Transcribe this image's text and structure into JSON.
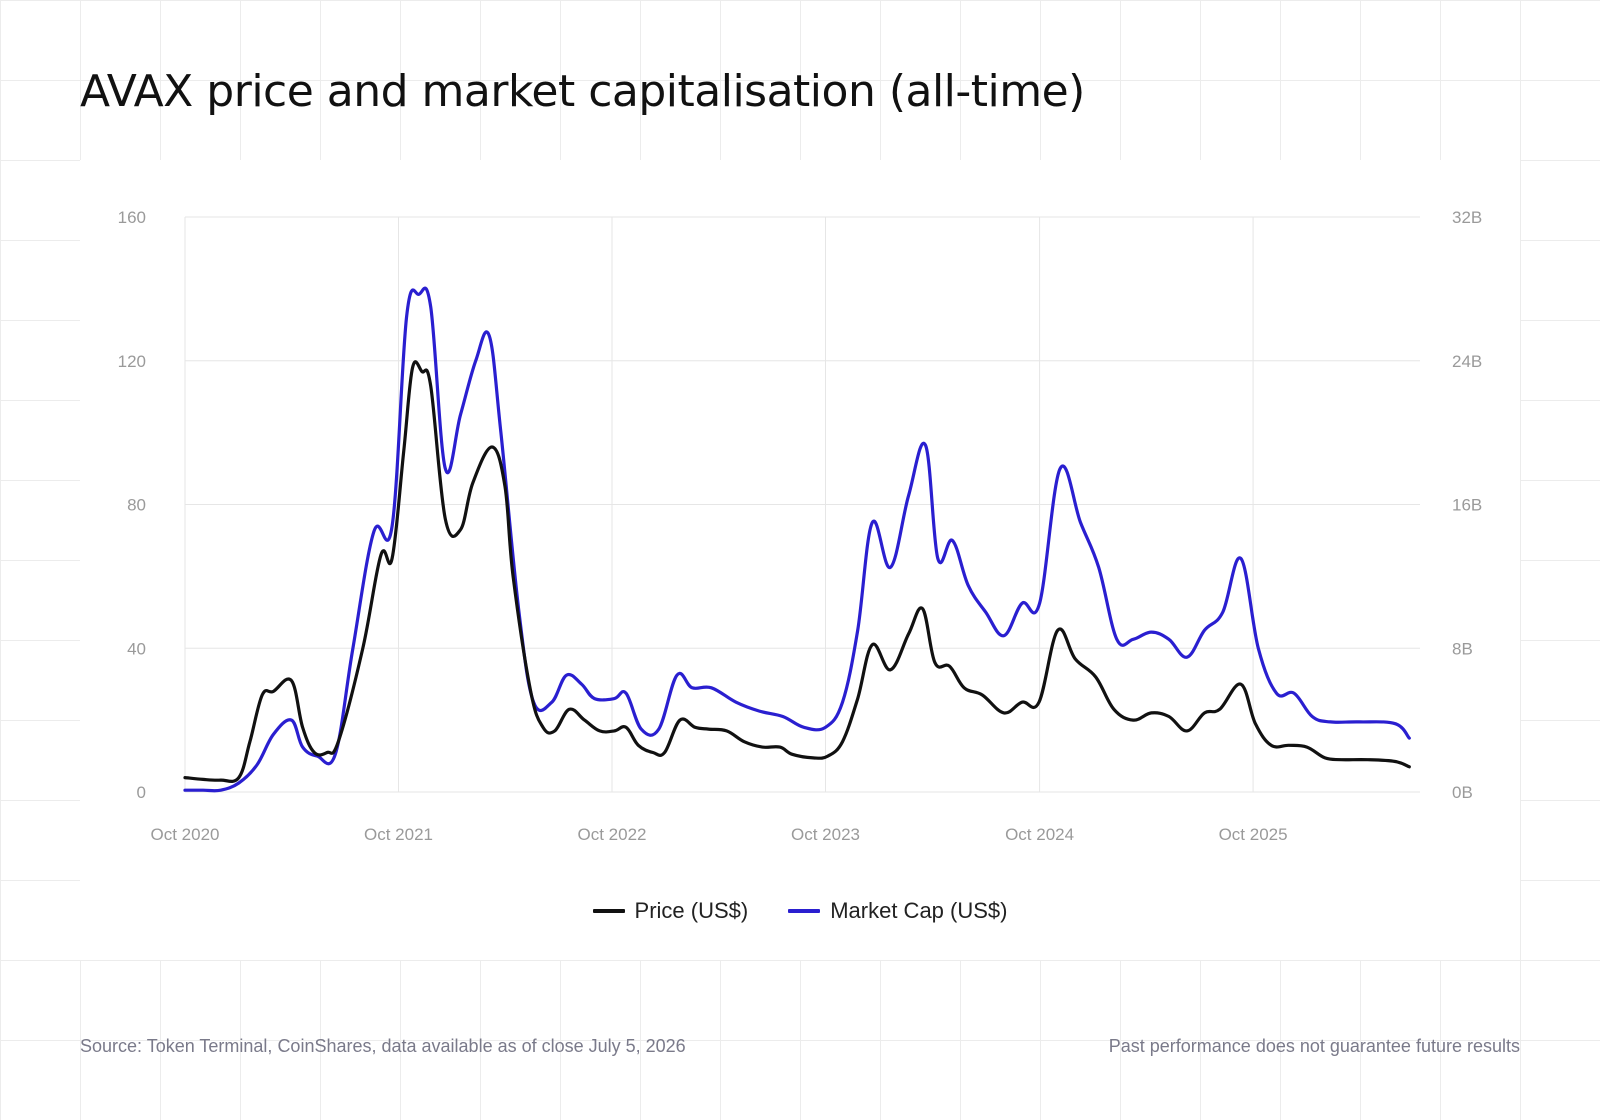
{
  "title": "AVAX price and market capitalisation (all-time)",
  "footer": {
    "source": "Source: Token Terminal, CoinShares, data available as of close July 5, 2026",
    "disclaimer": "Past performance does not guarantee future results"
  },
  "colors": {
    "price": "#111111",
    "market_cap": "#2a1fd0",
    "grid": "#e6e6e6",
    "tick": "#9a9a9a"
  },
  "chart_data": {
    "type": "line",
    "title": "AVAX price and market capitalisation (all-time)",
    "x_axis": {
      "range": [
        "2020-10",
        "2026-07"
      ],
      "tick_labels": [
        "Oct 2020",
        "Oct 2021",
        "Oct 2022",
        "Oct 2023",
        "Oct 2024",
        "Oct 2025"
      ],
      "tick_dates": [
        "2020-10",
        "2021-10",
        "2022-10",
        "2023-10",
        "2024-10",
        "2025-10"
      ]
    },
    "y_axis_left": {
      "range": [
        0,
        160
      ],
      "ticks": [
        0,
        40,
        80,
        120,
        160
      ],
      "tick_labels": [
        "0",
        "40",
        "80",
        "120",
        "160"
      ]
    },
    "y_axis_right": {
      "range": [
        0,
        32
      ],
      "unit": "B",
      "ticks": [
        0,
        8,
        16,
        24,
        32
      ],
      "tick_labels": [
        "0B",
        "8B",
        "16B",
        "24B",
        "32B"
      ]
    },
    "grid": true,
    "legend_position": "bottom-center",
    "series": [
      {
        "name": "Price (US$)",
        "axis": "left",
        "points": [
          [
            "2020-10-01",
            4
          ],
          [
            "2020-11-01",
            3.5
          ],
          [
            "2020-12-01",
            3.3
          ],
          [
            "2021-01-01",
            4
          ],
          [
            "2021-01-20",
            14
          ],
          [
            "2021-02-10",
            27
          ],
          [
            "2021-03-01",
            28
          ],
          [
            "2021-04-01",
            31
          ],
          [
            "2021-04-20",
            18
          ],
          [
            "2021-05-10",
            11
          ],
          [
            "2021-06-01",
            11
          ],
          [
            "2021-06-20",
            14
          ],
          [
            "2021-08-01",
            40
          ],
          [
            "2021-09-01",
            66
          ],
          [
            "2021-09-20",
            65
          ],
          [
            "2021-10-10",
            95
          ],
          [
            "2021-10-25",
            118
          ],
          [
            "2021-11-10",
            117
          ],
          [
            "2021-11-25",
            113
          ],
          [
            "2021-12-20",
            76
          ],
          [
            "2022-01-15",
            73
          ],
          [
            "2022-02-05",
            86
          ],
          [
            "2022-03-10",
            96
          ],
          [
            "2022-04-01",
            85
          ],
          [
            "2022-04-15",
            60
          ],
          [
            "2022-05-15",
            28
          ],
          [
            "2022-06-05",
            18
          ],
          [
            "2022-06-25",
            17
          ],
          [
            "2022-07-20",
            23
          ],
          [
            "2022-08-15",
            20
          ],
          [
            "2022-09-10",
            17
          ],
          [
            "2022-10-05",
            17
          ],
          [
            "2022-10-25",
            18
          ],
          [
            "2022-11-15",
            13
          ],
          [
            "2022-12-10",
            11
          ],
          [
            "2022-12-30",
            11
          ],
          [
            "2023-01-25",
            20
          ],
          [
            "2023-02-20",
            18
          ],
          [
            "2023-03-15",
            17.5
          ],
          [
            "2023-04-15",
            17
          ],
          [
            "2023-05-15",
            14
          ],
          [
            "2023-06-15",
            12.5
          ],
          [
            "2023-07-15",
            12.5
          ],
          [
            "2023-08-05",
            10.5
          ],
          [
            "2023-09-10",
            9.5
          ],
          [
            "2023-10-05",
            10
          ],
          [
            "2023-10-30",
            14
          ],
          [
            "2023-11-25",
            26
          ],
          [
            "2023-12-20",
            41
          ],
          [
            "2024-01-20",
            34
          ],
          [
            "2024-02-20",
            44
          ],
          [
            "2024-03-15",
            51
          ],
          [
            "2024-04-05",
            36
          ],
          [
            "2024-04-30",
            35
          ],
          [
            "2024-05-25",
            29
          ],
          [
            "2024-06-25",
            27
          ],
          [
            "2024-08-01",
            22
          ],
          [
            "2024-09-01",
            25
          ],
          [
            "2024-09-30",
            25
          ],
          [
            "2024-11-01",
            45
          ],
          [
            "2024-12-01",
            37
          ],
          [
            "2025-01-05",
            32
          ],
          [
            "2025-02-05",
            23
          ],
          [
            "2025-03-10",
            20
          ],
          [
            "2025-04-10",
            22
          ],
          [
            "2025-05-10",
            21
          ],
          [
            "2025-06-10",
            17
          ],
          [
            "2025-07-10",
            22
          ],
          [
            "2025-08-05",
            23
          ],
          [
            "2025-09-10",
            30
          ],
          [
            "2025-10-05",
            19
          ],
          [
            "2025-11-01",
            13
          ],
          [
            "2025-12-01",
            13
          ],
          [
            "2026-01-01",
            12.5
          ],
          [
            "2026-02-01",
            9.5
          ],
          [
            "2026-03-01",
            9
          ],
          [
            "2026-04-15",
            9
          ],
          [
            "2026-06-01",
            8.5
          ],
          [
            "2026-06-25",
            7
          ]
        ]
      },
      {
        "name": "Market Cap (US$)",
        "axis": "right",
        "unit": "B",
        "points": [
          [
            "2020-10-01",
            0.1
          ],
          [
            "2020-11-01",
            0.1
          ],
          [
            "2020-12-01",
            0.1
          ],
          [
            "2021-01-01",
            0.5
          ],
          [
            "2021-02-01",
            1.5
          ],
          [
            "2021-03-01",
            3.2
          ],
          [
            "2021-04-01",
            4
          ],
          [
            "2021-04-20",
            2.5
          ],
          [
            "2021-05-15",
            2
          ],
          [
            "2021-06-15",
            2.1
          ],
          [
            "2021-07-15",
            8
          ],
          [
            "2021-08-20",
            14.5
          ],
          [
            "2021-09-20",
            14.8
          ],
          [
            "2021-10-15",
            26.5
          ],
          [
            "2021-11-05",
            27.7
          ],
          [
            "2021-11-25",
            27
          ],
          [
            "2021-12-20",
            18
          ],
          [
            "2022-01-15",
            21
          ],
          [
            "2022-02-10",
            24
          ],
          [
            "2022-03-05",
            25.4
          ],
          [
            "2022-03-25",
            20
          ],
          [
            "2022-04-25",
            10
          ],
          [
            "2022-05-20",
            5
          ],
          [
            "2022-06-20",
            5
          ],
          [
            "2022-07-15",
            6.5
          ],
          [
            "2022-08-10",
            6
          ],
          [
            "2022-09-01",
            5.2
          ],
          [
            "2022-10-05",
            5.2
          ],
          [
            "2022-10-25",
            5.5
          ],
          [
            "2022-11-20",
            3.5
          ],
          [
            "2022-12-20",
            3.5
          ],
          [
            "2023-01-20",
            6.5
          ],
          [
            "2023-02-15",
            5.8
          ],
          [
            "2023-03-20",
            5.8
          ],
          [
            "2023-05-01",
            5
          ],
          [
            "2023-06-10",
            4.5
          ],
          [
            "2023-07-20",
            4.2
          ],
          [
            "2023-08-25",
            3.6
          ],
          [
            "2023-10-01",
            3.6
          ],
          [
            "2023-10-30",
            5
          ],
          [
            "2023-11-25",
            9
          ],
          [
            "2023-12-20",
            15
          ],
          [
            "2024-01-20",
            12.5
          ],
          [
            "2024-02-20",
            16.5
          ],
          [
            "2024-03-20",
            19.3
          ],
          [
            "2024-04-10",
            13
          ],
          [
            "2024-05-05",
            14
          ],
          [
            "2024-06-01",
            11.5
          ],
          [
            "2024-07-01",
            10
          ],
          [
            "2024-08-01",
            8.7
          ],
          [
            "2024-09-01",
            10.5
          ],
          [
            "2024-10-01",
            10.5
          ],
          [
            "2024-11-05",
            18
          ],
          [
            "2024-12-10",
            15
          ],
          [
            "2025-01-10",
            12.5
          ],
          [
            "2025-02-10",
            8.5
          ],
          [
            "2025-03-10",
            8.5
          ],
          [
            "2025-04-10",
            8.9
          ],
          [
            "2025-05-10",
            8.5
          ],
          [
            "2025-06-10",
            7.5
          ],
          [
            "2025-07-10",
            9
          ],
          [
            "2025-08-10",
            10
          ],
          [
            "2025-09-10",
            13
          ],
          [
            "2025-10-10",
            8
          ],
          [
            "2025-11-10",
            5.5
          ],
          [
            "2025-12-10",
            5.5
          ],
          [
            "2026-01-10",
            4.2
          ],
          [
            "2026-02-10",
            3.9
          ],
          [
            "2026-04-01",
            3.9
          ],
          [
            "2026-06-01",
            3.8
          ],
          [
            "2026-06-25",
            3
          ]
        ]
      }
    ]
  }
}
